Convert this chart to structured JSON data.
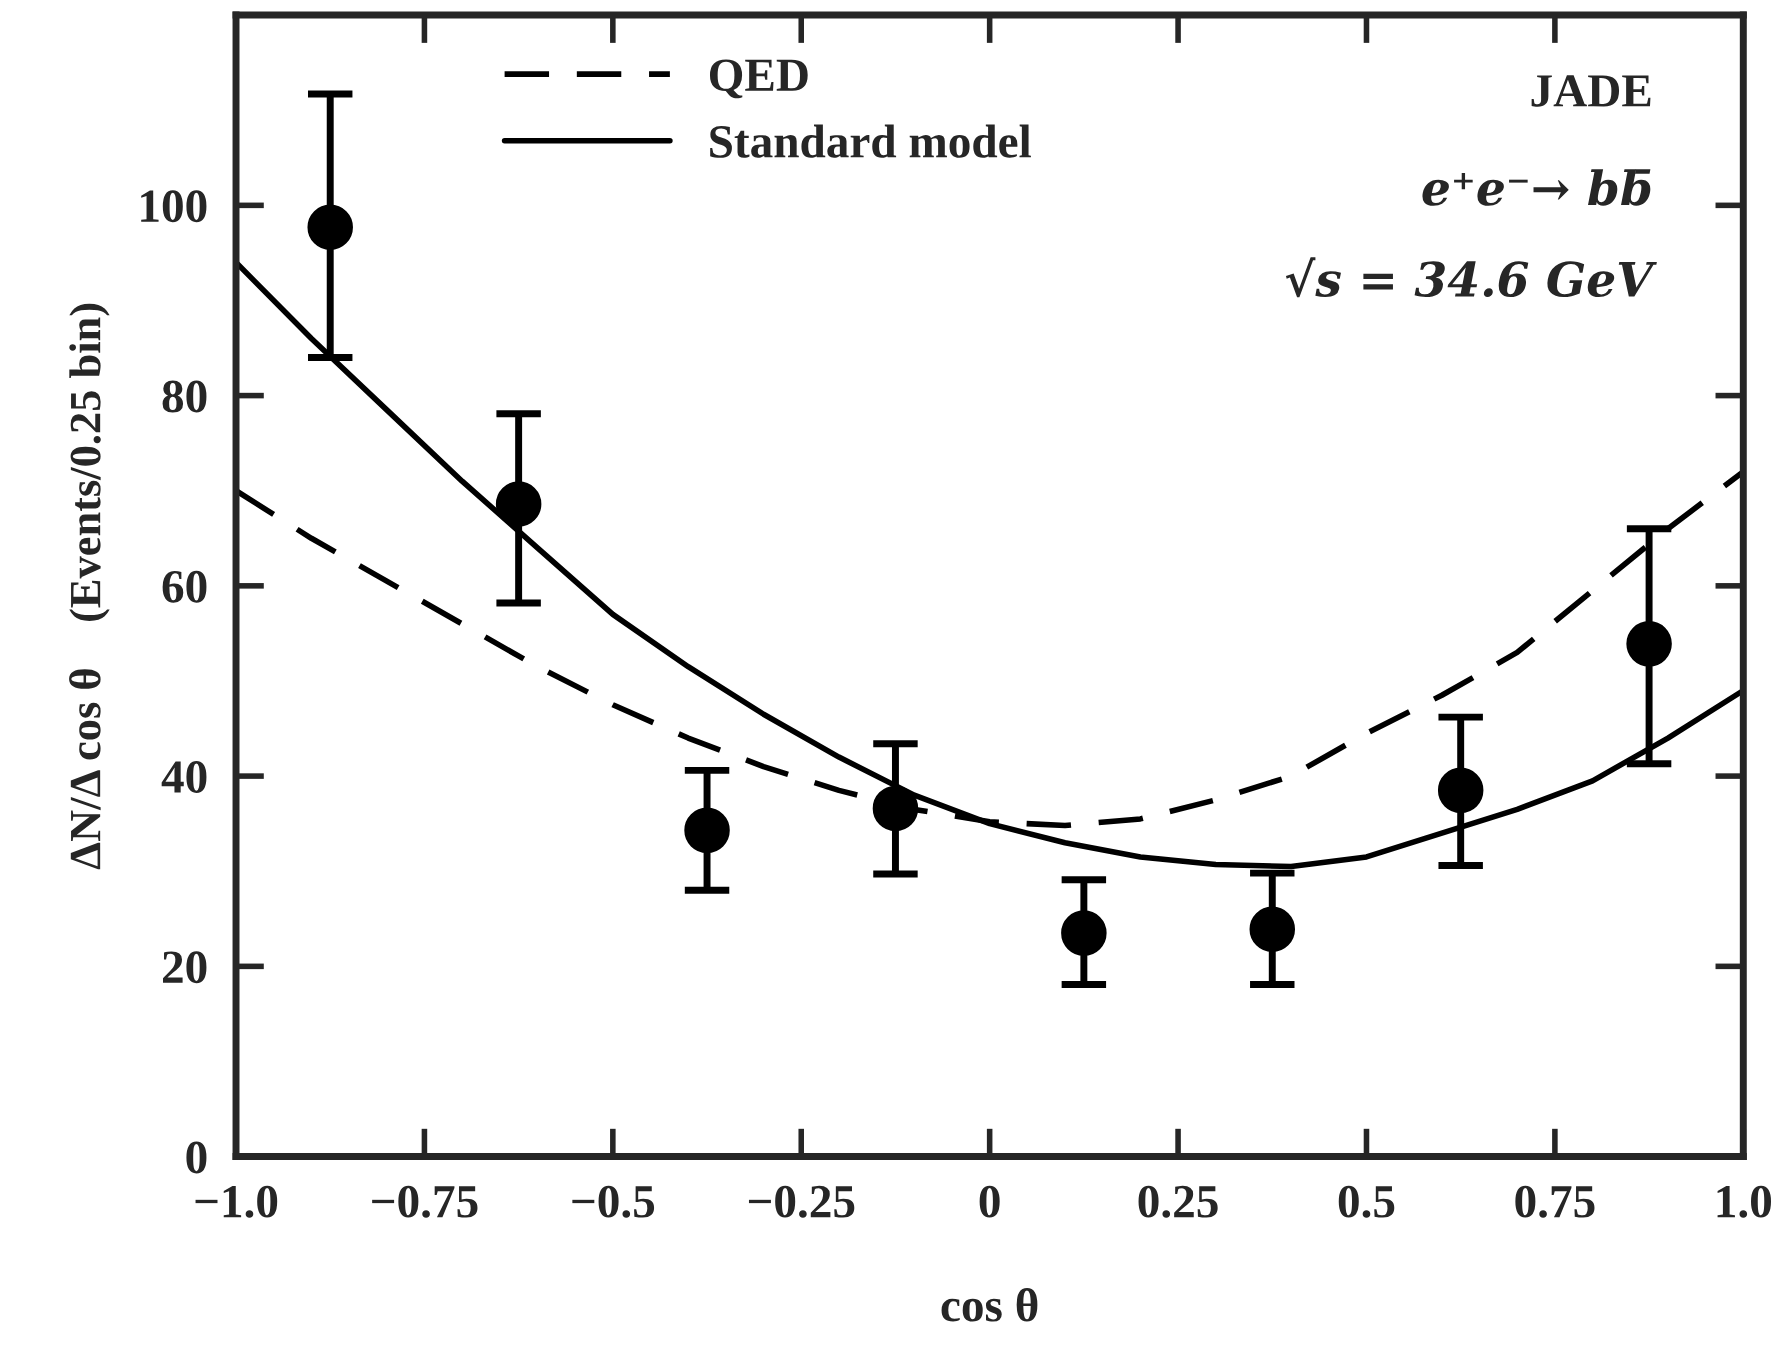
{
  "chart_data": {
    "type": "scatter",
    "xlabel": "cos θ",
    "ylabel": "ΔN/Δ cos θ    (Events/0.25 bin)",
    "annotations": [
      "JADE",
      "e⁺e⁻→ bb̄",
      "√s = 34.6 GeV"
    ],
    "xlim": [
      -1.0,
      1.0
    ],
    "ylim": [
      0,
      120
    ],
    "xticks": [
      {
        "value": -1.0,
        "label": "−1.0"
      },
      {
        "value": -0.75,
        "label": "−0.75"
      },
      {
        "value": -0.5,
        "label": "−0.5"
      },
      {
        "value": -0.25,
        "label": "−0.25"
      },
      0,
      0.25,
      0.5,
      0.75,
      {
        "value": 1.0,
        "label": "1.0"
      }
    ],
    "yticks": [
      0,
      20,
      40,
      60,
      80,
      100
    ],
    "grid": false,
    "legend": "top",
    "series": [
      {
        "type": "line",
        "name": "QED",
        "color": "#000000",
        "line_style": "dashed",
        "marker": "none",
        "x": [
          -1.0,
          -0.9,
          -0.8,
          -0.7,
          -0.6,
          -0.5,
          -0.4,
          -0.3,
          -0.2,
          -0.1,
          0,
          0.1,
          0.2,
          0.3,
          0.4,
          0.5,
          0.6,
          0.7,
          0.8,
          0.9,
          1.0
        ],
        "values": [
          70,
          65,
          60.5,
          56,
          51.5,
          47.5,
          44,
          41,
          38.5,
          36.5,
          35.2,
          34.8,
          35.5,
          37.5,
          40,
          44.5,
          48.5,
          53,
          59.5,
          66,
          72
        ]
      },
      {
        "type": "line",
        "name": "Standard model",
        "color": "#000000",
        "line_style": "solid",
        "marker": "none",
        "x": [
          -1.0,
          -0.9,
          -0.8,
          -0.7,
          -0.6,
          -0.5,
          -0.4,
          -0.3,
          -0.2,
          -0.1,
          0,
          0.1,
          0.2,
          0.3,
          0.4,
          0.5,
          0.6,
          0.7,
          0.8,
          0.9,
          1.0
        ],
        "values": [
          94,
          86,
          78.5,
          71,
          64,
          57,
          51.5,
          46.5,
          42,
          38,
          35,
          33,
          31.5,
          30.7,
          30.5,
          31.5,
          34,
          36.5,
          39.5,
          44,
          49
        ]
      },
      {
        "color": "#000000",
        "marker": "circle",
        "x": [
          -0.875,
          -0.625,
          -0.375,
          -0.125,
          0.125,
          0.375,
          0.625,
          0.875
        ],
        "values": [
          97.7,
          68.6,
          34.3,
          36.6,
          23.5,
          23.9,
          38.5,
          53.9
        ],
        "errors": [
          [
            84,
            111.7
          ],
          [
            58.2,
            78.1
          ],
          [
            28,
            40.6
          ],
          [
            29.7,
            43.4
          ],
          [
            18.1,
            29.1
          ],
          [
            18.1,
            29.8
          ],
          [
            30.6,
            46.2
          ],
          [
            41.3,
            66
          ]
        ]
      }
    ]
  }
}
